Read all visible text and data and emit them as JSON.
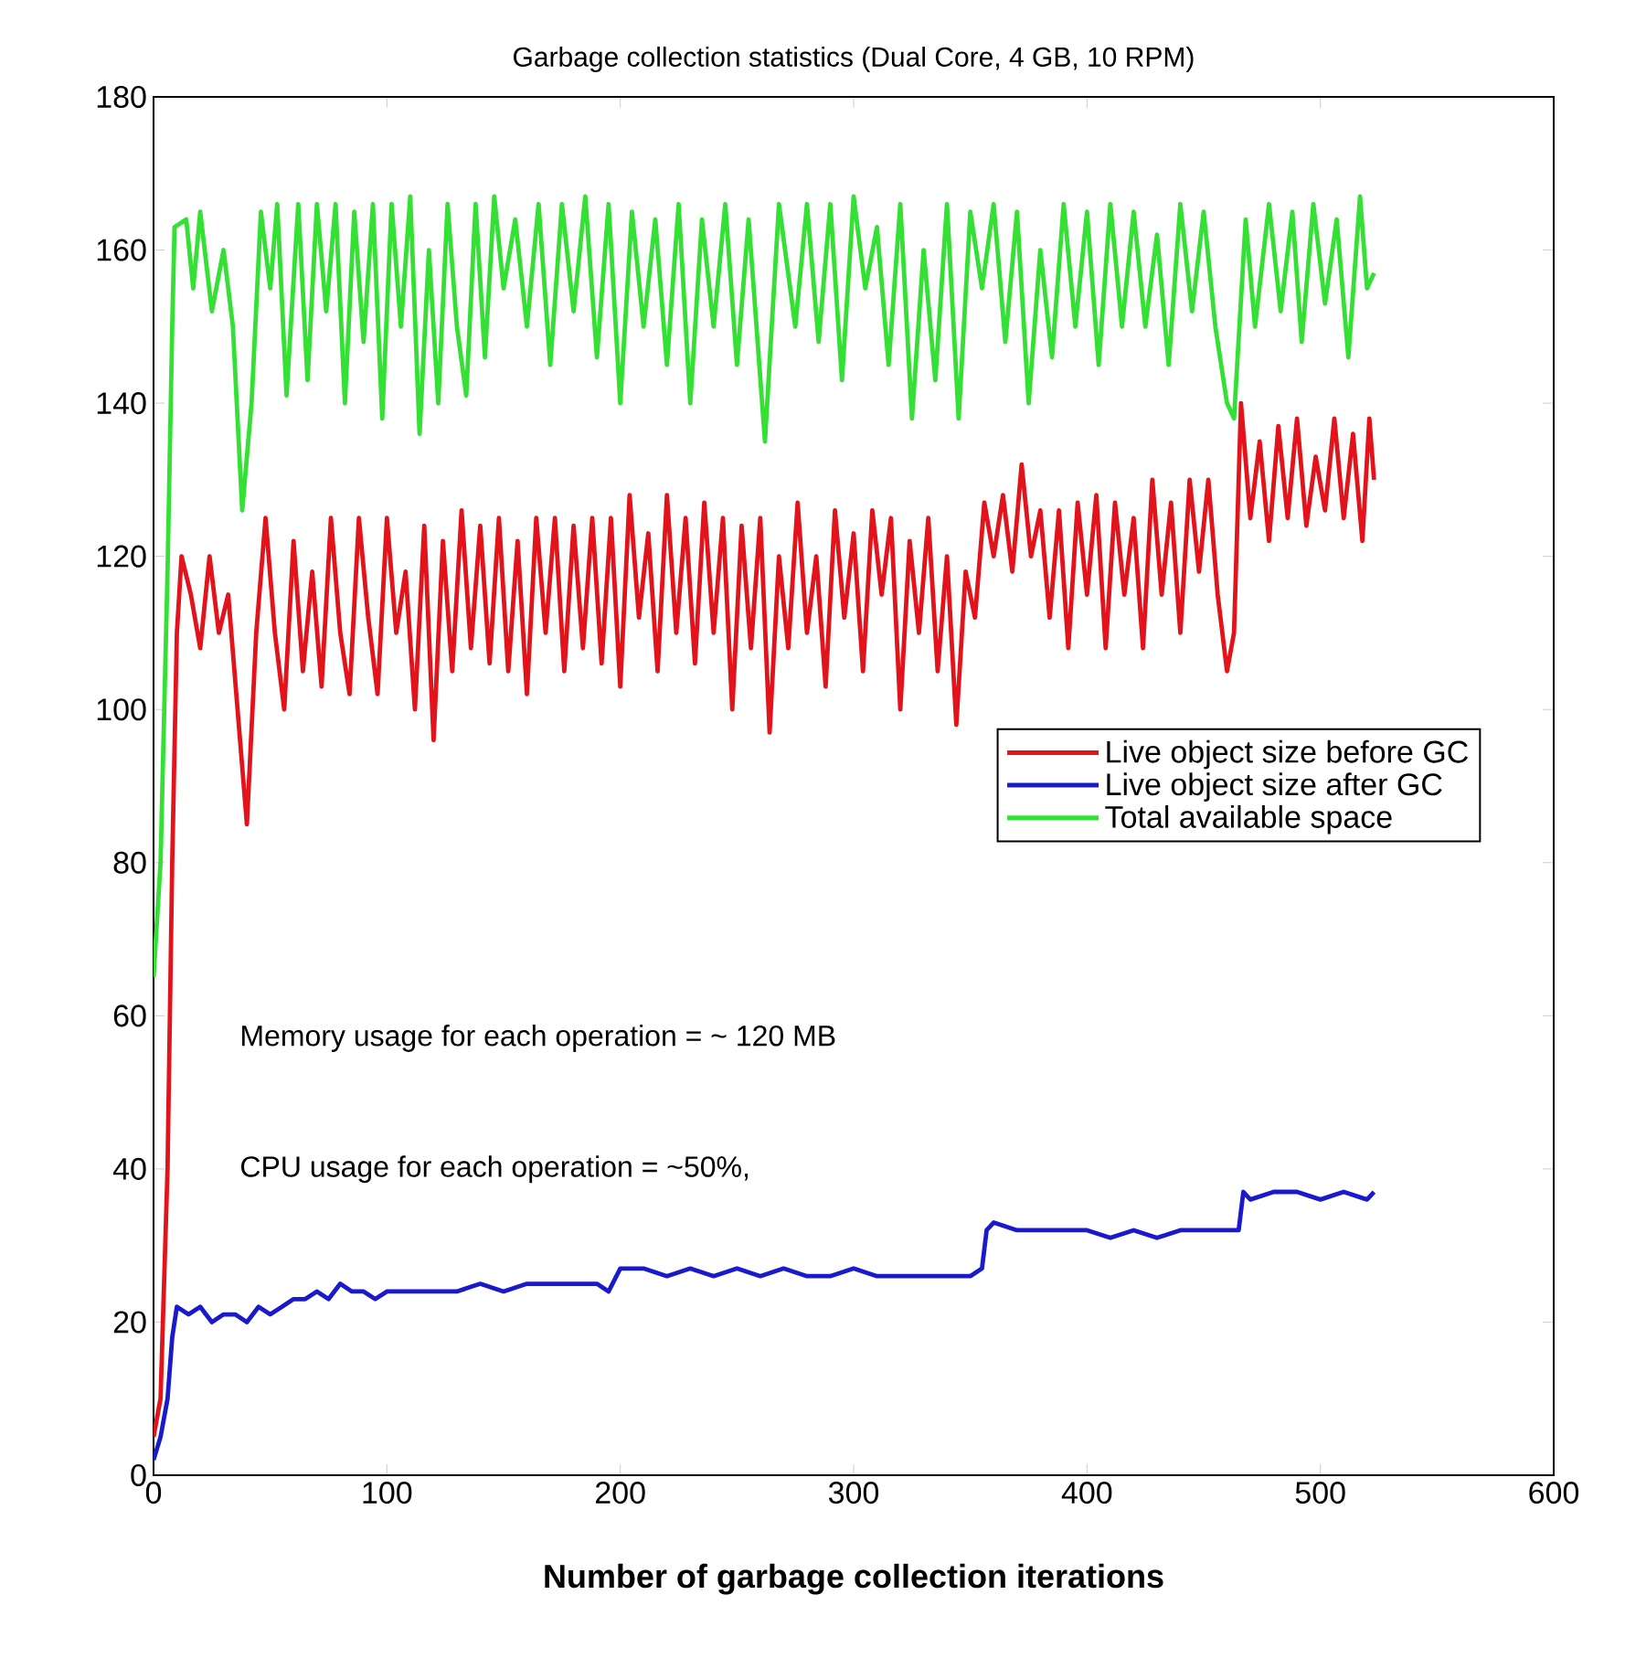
{
  "chart_data": {
    "type": "line",
    "title": "Garbage collection statistics (Dual Core, 4 GB, 10  RPM)",
    "xlabel": "**Number of garbage collection iterations**",
    "xlim": [
      0,
      600
    ],
    "xticks": [
      0,
      100,
      200,
      300,
      400,
      500,
      600
    ],
    "ylim": [
      0,
      180
    ],
    "yticks": [
      0,
      20,
      40,
      60,
      80,
      100,
      120,
      140,
      160,
      180
    ],
    "grid": false,
    "legend": "right",
    "marker": "none",
    "line_style": "solid",
    "annotations": [
      "Memory usage for each operation = ~ 120 MB",
      "CPU usage for each operation = ~50%,"
    ],
    "series": [
      {
        "name": "Live object size before GC",
        "color": "#e3131b",
        "x": [
          0,
          3,
          6,
          8,
          10,
          12,
          16,
          20,
          24,
          28,
          32,
          36,
          40,
          44,
          48,
          52,
          56,
          60,
          64,
          68,
          72,
          76,
          80,
          84,
          88,
          92,
          96,
          100,
          104,
          108,
          112,
          116,
          120,
          124,
          128,
          132,
          136,
          140,
          144,
          148,
          152,
          156,
          160,
          164,
          168,
          172,
          176,
          180,
          184,
          188,
          192,
          196,
          200,
          204,
          208,
          212,
          216,
          220,
          224,
          228,
          232,
          236,
          240,
          244,
          248,
          252,
          256,
          260,
          264,
          268,
          272,
          276,
          280,
          284,
          288,
          292,
          296,
          300,
          304,
          308,
          312,
          316,
          320,
          324,
          328,
          332,
          336,
          340,
          344,
          348,
          352,
          356,
          360,
          364,
          368,
          372,
          376,
          380,
          384,
          388,
          392,
          396,
          400,
          404,
          408,
          412,
          416,
          420,
          424,
          428,
          432,
          436,
          440,
          444,
          448,
          452,
          456,
          460,
          463,
          466,
          470,
          474,
          478,
          482,
          486,
          490,
          494,
          498,
          502,
          506,
          510,
          514,
          518,
          521,
          523
        ],
        "values": [
          5,
          10,
          40,
          80,
          110,
          120,
          115,
          108,
          120,
          110,
          115,
          100,
          85,
          110,
          125,
          110,
          100,
          122,
          105,
          118,
          103,
          125,
          110,
          102,
          125,
          112,
          102,
          125,
          110,
          118,
          100,
          124,
          96,
          122,
          105,
          126,
          108,
          124,
          106,
          125,
          105,
          122,
          102,
          125,
          110,
          125,
          105,
          124,
          108,
          125,
          106,
          125,
          103,
          128,
          112,
          123,
          105,
          128,
          110,
          125,
          106,
          127,
          110,
          125,
          100,
          124,
          108,
          125,
          97,
          120,
          108,
          127,
          110,
          120,
          103,
          126,
          112,
          123,
          105,
          126,
          115,
          125,
          100,
          122,
          110,
          125,
          105,
          120,
          98,
          118,
          112,
          127,
          120,
          128,
          118,
          132,
          120,
          126,
          112,
          126,
          108,
          127,
          115,
          128,
          108,
          127,
          115,
          125,
          108,
          130,
          115,
          127,
          110,
          130,
          118,
          130,
          115,
          105,
          110,
          140,
          125,
          135,
          122,
          137,
          125,
          138,
          124,
          133,
          126,
          138,
          125,
          136,
          122,
          138,
          130
        ]
      },
      {
        "name": "Live object size after GC",
        "color": "#1a1acc",
        "x": [
          0,
          3,
          6,
          8,
          10,
          15,
          20,
          25,
          30,
          35,
          40,
          45,
          50,
          55,
          60,
          65,
          70,
          75,
          80,
          85,
          90,
          95,
          100,
          110,
          120,
          130,
          140,
          150,
          160,
          170,
          180,
          190,
          195,
          200,
          210,
          220,
          230,
          240,
          250,
          260,
          270,
          280,
          290,
          300,
          310,
          320,
          330,
          340,
          350,
          355,
          357,
          360,
          370,
          380,
          390,
          400,
          410,
          420,
          430,
          440,
          450,
          460,
          465,
          467,
          470,
          480,
          490,
          500,
          510,
          520,
          523
        ],
        "values": [
          2,
          5,
          10,
          18,
          22,
          21,
          22,
          20,
          21,
          21,
          20,
          22,
          21,
          22,
          23,
          23,
          24,
          23,
          25,
          24,
          24,
          23,
          24,
          24,
          24,
          24,
          25,
          24,
          25,
          25,
          25,
          25,
          24,
          27,
          27,
          26,
          27,
          26,
          27,
          26,
          27,
          26,
          26,
          27,
          26,
          26,
          26,
          26,
          26,
          27,
          32,
          33,
          32,
          32,
          32,
          32,
          31,
          32,
          31,
          32,
          32,
          32,
          32,
          37,
          36,
          37,
          37,
          36,
          37,
          36,
          37
        ]
      },
      {
        "name": "Total available space",
        "color": "#33e033",
        "x": [
          0,
          3,
          6,
          8,
          9,
          14,
          17,
          20,
          25,
          30,
          34,
          38,
          42,
          46,
          50,
          53,
          57,
          62,
          66,
          70,
          74,
          78,
          82,
          86,
          90,
          94,
          98,
          102,
          106,
          110,
          114,
          118,
          122,
          126,
          130,
          134,
          138,
          142,
          146,
          150,
          155,
          160,
          165,
          170,
          175,
          180,
          185,
          190,
          195,
          200,
          205,
          210,
          215,
          220,
          225,
          230,
          235,
          240,
          245,
          250,
          255,
          262,
          268,
          275,
          280,
          285,
          290,
          295,
          300,
          305,
          310,
          315,
          320,
          325,
          330,
          335,
          340,
          345,
          350,
          355,
          360,
          365,
          370,
          375,
          380,
          385,
          390,
          395,
          400,
          405,
          410,
          415,
          420,
          425,
          430,
          435,
          440,
          445,
          450,
          455,
          460,
          463,
          468,
          472,
          478,
          483,
          488,
          492,
          497,
          502,
          507,
          512,
          517,
          520,
          523
        ],
        "values": [
          65,
          80,
          118,
          150,
          163,
          164,
          155,
          165,
          152,
          160,
          150,
          126,
          140,
          165,
          155,
          166,
          141,
          166,
          143,
          166,
          152,
          166,
          140,
          165,
          148,
          166,
          138,
          166,
          150,
          167,
          136,
          160,
          140,
          166,
          150,
          141,
          166,
          146,
          167,
          155,
          164,
          150,
          166,
          145,
          166,
          152,
          167,
          146,
          166,
          140,
          165,
          150,
          164,
          145,
          166,
          140,
          164,
          150,
          166,
          145,
          164,
          135,
          166,
          150,
          166,
          148,
          166,
          143,
          167,
          155,
          163,
          145,
          166,
          138,
          160,
          143,
          166,
          138,
          165,
          155,
          166,
          148,
          165,
          140,
          160,
          146,
          166,
          150,
          165,
          145,
          166,
          150,
          165,
          150,
          162,
          145,
          166,
          152,
          165,
          150,
          140,
          138,
          164,
          150,
          166,
          152,
          165,
          148,
          166,
          153,
          164,
          146,
          167,
          155,
          157
        ]
      }
    ]
  }
}
